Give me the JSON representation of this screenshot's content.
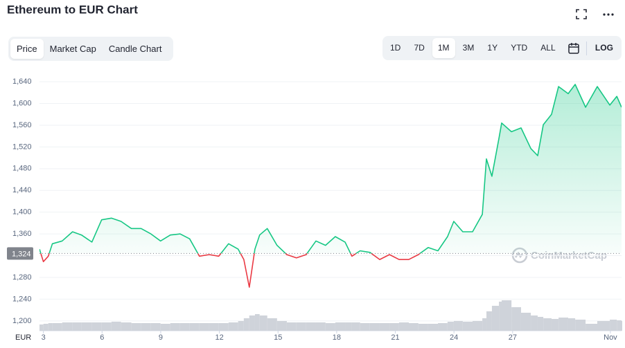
{
  "chart_data": {
    "type": "line",
    "title": "Ethereum to EUR Chart",
    "currency": "EUR",
    "watermark": "CoinMarketCap",
    "x": [
      2.8,
      3.0,
      3.25,
      3.46,
      3.96,
      4.49,
      4.95,
      5.48,
      5.98,
      6.48,
      6.97,
      7.5,
      8.0,
      8.5,
      8.99,
      9.49,
      9.99,
      10.48,
      10.98,
      11.48,
      11.97,
      12.47,
      12.96,
      13.25,
      13.53,
      13.82,
      14.06,
      14.45,
      14.95,
      15.45,
      15.94,
      16.44,
      16.94,
      17.43,
      17.93,
      18.43,
      18.78,
      19.2,
      19.7,
      20.2,
      20.7,
      21.19,
      21.69,
      22.18,
      22.68,
      23.18,
      23.67,
      23.99,
      24.45,
      24.95,
      25.45,
      25.66,
      25.94,
      26.3,
      26.44,
      26.94,
      27.43,
      27.93,
      28.28,
      28.57,
      28.99,
      29.35,
      29.84,
      30.2,
      30.73,
      31.33,
      31.97,
      32.33,
      32.57
    ],
    "values": [
      1332,
      1309,
      1319,
      1342,
      1347,
      1364,
      1358,
      1345,
      1386,
      1389,
      1383,
      1370,
      1370,
      1360,
      1347,
      1358,
      1360,
      1351,
      1319,
      1322,
      1319,
      1342,
      1332,
      1313,
      1262,
      1332,
      1358,
      1370,
      1339,
      1322,
      1316,
      1322,
      1347,
      1339,
      1355,
      1345,
      1319,
      1329,
      1326,
      1313,
      1322,
      1313,
      1313,
      1322,
      1335,
      1329,
      1355,
      1383,
      1364,
      1364,
      1396,
      1498,
      1466,
      1536,
      1564,
      1548,
      1555,
      1517,
      1504,
      1561,
      1580,
      1631,
      1618,
      1635,
      1593,
      1631,
      1597,
      1613,
      1593
    ],
    "volume": [
      9,
      10,
      11,
      11,
      12,
      12,
      12,
      12,
      12,
      13,
      12,
      11,
      11,
      11,
      10,
      11,
      11,
      11,
      11,
      11,
      11,
      12,
      14,
      18,
      22,
      24,
      22,
      18,
      14,
      12,
      12,
      12,
      12,
      11,
      12,
      12,
      12,
      11,
      11,
      11,
      11,
      12,
      11,
      10,
      10,
      11,
      13,
      14,
      13,
      14,
      18,
      28,
      36,
      42,
      44,
      34,
      26,
      22,
      20,
      18,
      17,
      19,
      18,
      16,
      10,
      14,
      16,
      15,
      14
    ],
    "baseline": {
      "value": 1324,
      "label": "1,324"
    },
    "up_color": "#16c784",
    "down_color": "#ea3943",
    "volume_color": "#cfd3da",
    "xlim": [
      2.8,
      32.57
    ],
    "xticks": [
      3,
      6,
      9,
      12,
      15,
      18,
      21,
      24,
      27,
      {
        "value": 32,
        "label": "Nov"
      }
    ],
    "ylim": [
      1182,
      1663
    ],
    "yticks": [
      {
        "value": 1200,
        "label": "1,200"
      },
      {
        "value": 1240,
        "label": "1,240"
      },
      {
        "value": 1280,
        "label": "1,280"
      },
      {
        "value": 1320,
        "label": "1,320"
      },
      {
        "value": 1360,
        "label": "1,360"
      },
      {
        "value": 1400,
        "label": "1,400"
      },
      {
        "value": 1440,
        "label": "1,440"
      },
      {
        "value": 1480,
        "label": "1,480"
      },
      {
        "value": 1520,
        "label": "1,520"
      },
      {
        "value": 1560,
        "label": "1,560"
      },
      {
        "value": 1600,
        "label": "1,600"
      },
      {
        "value": 1640,
        "label": "1,640"
      }
    ],
    "grid": true
  },
  "toolbar": {
    "tabs": [
      "Price",
      "Market Cap",
      "Candle Chart"
    ],
    "selected_tab": 0,
    "ranges": [
      "1D",
      "7D",
      "1M",
      "3M",
      "1Y",
      "YTD",
      "ALL"
    ],
    "selected_range": 2,
    "log": "LOG"
  }
}
